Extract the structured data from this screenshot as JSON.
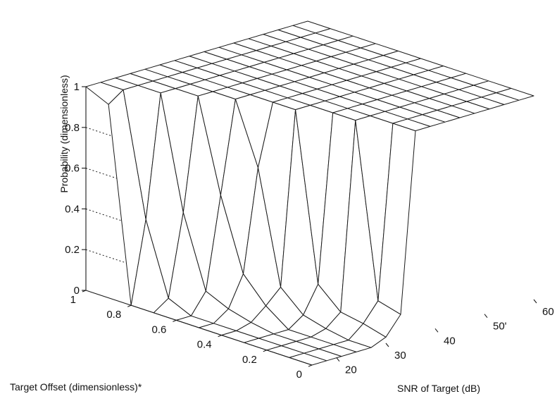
{
  "chart_data": {
    "type": "surface3d",
    "x_label": "SNR of Target (dB)",
    "y_label": "Target Offset (dimensionless)*",
    "z_label": "Probability (dimensionless)",
    "x_ticks": [
      "20",
      "30",
      "40",
      "50'",
      "60"
    ],
    "y_ticks": [
      "0",
      "0.2",
      "0.4",
      "0.6",
      "0.8",
      "1"
    ],
    "z_ticks": [
      "0",
      "0.2",
      "0.4",
      "0.6",
      "0.8",
      "1"
    ],
    "x_range": [
      15,
      60
    ],
    "y_range": [
      0,
      1
    ],
    "z_range": [
      0,
      1
    ],
    "snr": [
      15,
      18,
      21,
      24,
      27,
      30,
      33,
      36,
      39,
      42,
      45,
      48,
      51,
      54,
      57,
      60
    ],
    "offset": [
      0,
      0.1,
      0.2,
      0.3,
      0.4,
      0.5,
      0.6,
      0.7,
      0.8,
      0.9,
      1.0
    ],
    "probability": [
      [
        0,
        0,
        0,
        0,
        0,
        0.03,
        0.12,
        1,
        1,
        1,
        1,
        1,
        1,
        1,
        1,
        1
      ],
      [
        0,
        0,
        0,
        0,
        0,
        0.06,
        0.15,
        1,
        1,
        1,
        1,
        1,
        1,
        1,
        1,
        1
      ],
      [
        0,
        0,
        0,
        0,
        0.02,
        0.08,
        1,
        1,
        1,
        1,
        1,
        1,
        1,
        1,
        1,
        1
      ],
      [
        0,
        0,
        0,
        0,
        0.05,
        0.18,
        1,
        1,
        1,
        1,
        1,
        1,
        1,
        1,
        1,
        1
      ],
      [
        0,
        0,
        0.02,
        0.08,
        0.15,
        1,
        1,
        1,
        1,
        1,
        1,
        1,
        1,
        1,
        1,
        1
      ],
      [
        0,
        0,
        0.05,
        0.2,
        0.7,
        1,
        1,
        1,
        1,
        1,
        1,
        1,
        1,
        1,
        1,
        1
      ],
      [
        0,
        0,
        0.1,
        0.55,
        1,
        1,
        1,
        1,
        1,
        1,
        1,
        1,
        1,
        1,
        1,
        1
      ],
      [
        0,
        0.05,
        0.45,
        1,
        1,
        1,
        1,
        1,
        1,
        1,
        1,
        1,
        1,
        1,
        1,
        1
      ],
      [
        0,
        0.4,
        1,
        1,
        1,
        1,
        1,
        1,
        1,
        1,
        1,
        1,
        1,
        1,
        1,
        1
      ],
      [
        0.95,
        1,
        1,
        1,
        1,
        1,
        1,
        1,
        1,
        1,
        1,
        1,
        1,
        1,
        1,
        1
      ],
      [
        1,
        1,
        1,
        1,
        1,
        1,
        1,
        1,
        1,
        1,
        1,
        1,
        1,
        1,
        1,
        1
      ]
    ],
    "grid": true,
    "legend": "none"
  }
}
